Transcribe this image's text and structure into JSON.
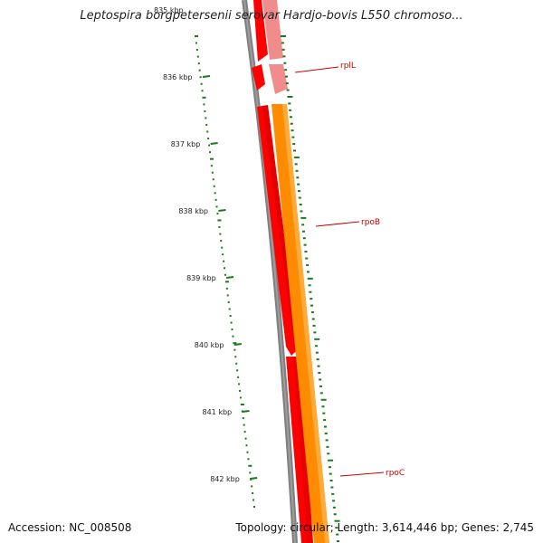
{
  "map": {
    "title": "Leptospira borgpetersenii serovar Hardjo-bovis L550 chromoso...",
    "accession": "Accession: NC_008508",
    "summary": "Topology: circular; Length: 3,614,446 bp; Genes: 2,745"
  },
  "axis": {
    "top_faded_label": "835 kbp",
    "ticks": [
      {
        "label": "836 kbp",
        "kbp": 836
      },
      {
        "label": "837 kbp",
        "kbp": 837
      },
      {
        "label": "838 kbp",
        "kbp": 838
      },
      {
        "label": "839 kbp",
        "kbp": 839
      },
      {
        "label": "840 kbp",
        "kbp": 840
      },
      {
        "label": "841 kbp",
        "kbp": 841
      },
      {
        "label": "842 kbp",
        "kbp": 842
      }
    ]
  },
  "genes": [
    {
      "name": "rplL",
      "color": "#cc0000"
    },
    {
      "name": "rpoB",
      "color": "#cc0000"
    },
    {
      "name": "rpoC",
      "color": "#cc0000"
    }
  ],
  "colors": {
    "backbone": "#808080",
    "cds_dark": "#ff0000",
    "cds_light": "#f08080",
    "orf": "#ff8c00",
    "tick": "#1a7a1a"
  }
}
